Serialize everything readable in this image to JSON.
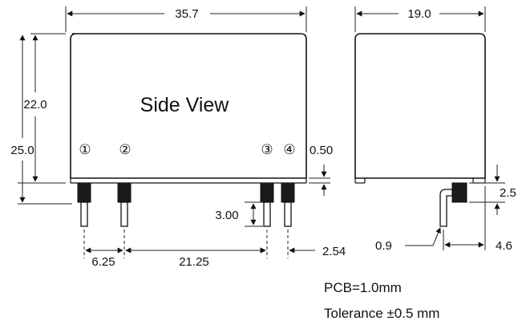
{
  "title": "Side View",
  "dimensions": {
    "width_side": "35.7",
    "width_end": "19.0",
    "height_body": "22.0",
    "height_total": "25.0",
    "standoff_gap": "0.50",
    "pin_length": "3.00",
    "pin1_offset": "6.25",
    "pin_span": "21.25",
    "pin_pitch": "2.54",
    "pin_lead_width": "0.9",
    "end_standoff": "2.5",
    "end_pin_offset": "4.6"
  },
  "pins": [
    "①",
    "②",
    "③",
    "④"
  ],
  "notes": {
    "pcb": "PCB=1.0mm",
    "tolerance": "Tolerance ±0.5 mm"
  }
}
